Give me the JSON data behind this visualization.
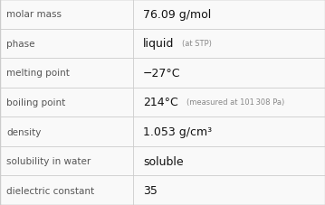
{
  "rows": [
    {
      "label": "molar mass",
      "value": "76.09 g/mol",
      "note": ""
    },
    {
      "label": "phase",
      "value": "liquid",
      "note": "(at STP)"
    },
    {
      "label": "melting point",
      "value": "−27°C",
      "note": ""
    },
    {
      "label": "boiling point",
      "value": "214°C",
      "note": "(measured at 101 308 Pa)"
    },
    {
      "label": "density",
      "value": "1.053 g/cm³",
      "note": ""
    },
    {
      "label": "solubility in water",
      "value": "soluble",
      "note": ""
    },
    {
      "label": "dielectric constant",
      "value": "35",
      "note": ""
    }
  ],
  "col_split": 0.41,
  "bg_color": "#f9f9f9",
  "line_color": "#cccccc",
  "label_font_size": 7.5,
  "value_font_size": 9.0,
  "note_font_size": 6.0,
  "label_color": "#555555",
  "value_color": "#111111",
  "note_color": "#888888"
}
